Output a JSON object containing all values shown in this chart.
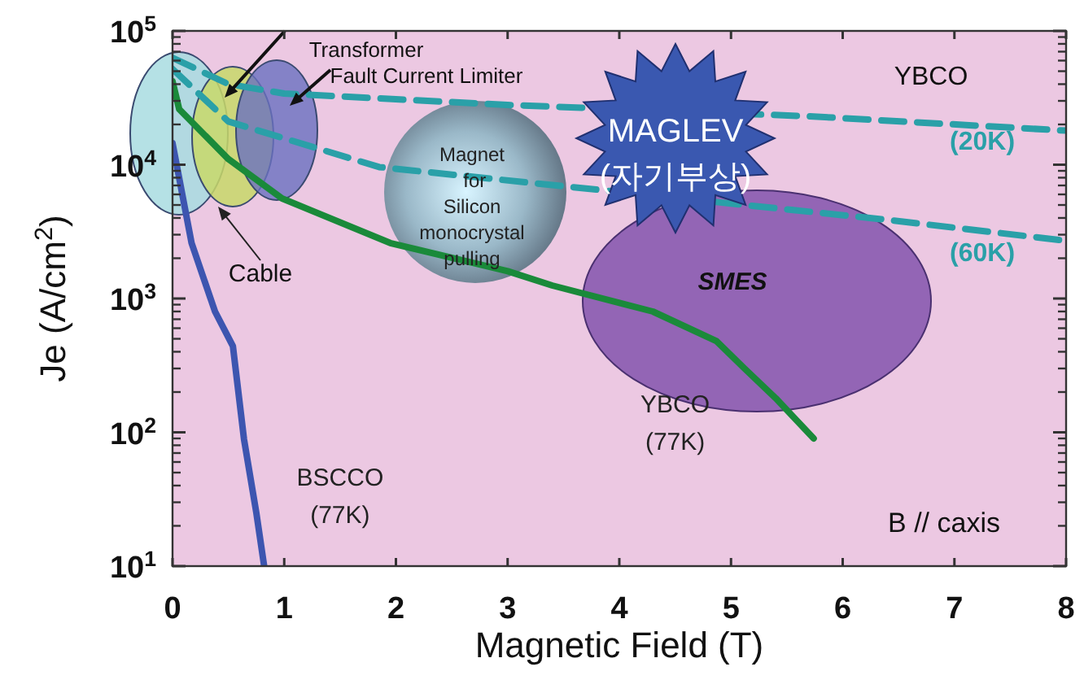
{
  "chart_data": {
    "type": "line",
    "log": "y",
    "xlabel": "Magnetic Field (T)",
    "ylabel": "Je (A/cm$^{2}$)",
    "xlim": [
      0,
      8
    ],
    "xticks": [
      0,
      1,
      2,
      3,
      4,
      5,
      6,
      7,
      8
    ],
    "ylim": [
      10,
      100000
    ],
    "yticks": [
      {
        "value": 10,
        "label": "10$^{1}$"
      },
      {
        "value": 100,
        "label": "10$^{2}$"
      },
      {
        "value": 1000,
        "label": "10$^{3}$"
      },
      {
        "value": 10000,
        "label": "10$^{4}$"
      },
      {
        "value": 100000,
        "label": "10$^{5}$"
      }
    ],
    "legend": false,
    "grid": false,
    "series": [
      {
        "name": "(20K)",
        "color": "#2aa0a8",
        "line_style": "dashed",
        "x": [
          0,
          0.5,
          1,
          3,
          5.7,
          8
        ],
        "values": [
          63000,
          40000,
          34000,
          28000,
          23000,
          18000
        ]
      },
      {
        "name": "(60K)",
        "color": "#2aa0a8",
        "line_style": "dashed",
        "x": [
          0,
          0.5,
          1.85,
          6.37,
          8
        ],
        "values": [
          52000,
          21000,
          9600,
          3900,
          2700
        ]
      },
      {
        "name": "YBCO (77K)",
        "color": "#1a8a3a",
        "line_style": "solid",
        "x": [
          0,
          0.06,
          0.5,
          0.98,
          1.95,
          3,
          3.4,
          4.3,
          4.87,
          5.12,
          5.4,
          5.74
        ],
        "values": [
          42000,
          26000,
          11000,
          5600,
          2600,
          1600,
          1250,
          800,
          480,
          300,
          180,
          90
        ]
      },
      {
        "name": "BSCCO (77K)",
        "color": "#3d55b0",
        "line_style": "solid",
        "x": [
          0,
          0.17,
          0.38,
          0.54,
          0.64,
          0.75,
          0.82
        ],
        "values": [
          14500,
          2600,
          800,
          440,
          89,
          25,
          10
        ]
      }
    ],
    "annotations": [
      "Transformer",
      "Fault Current Limiter",
      "Magnet\n for\nSilicon\nmonocrystal\npulling",
      "MAGLEV\n(자기부상)",
      "SMES",
      "Cable",
      "YBCO",
      "B // caxis"
    ]
  }
}
